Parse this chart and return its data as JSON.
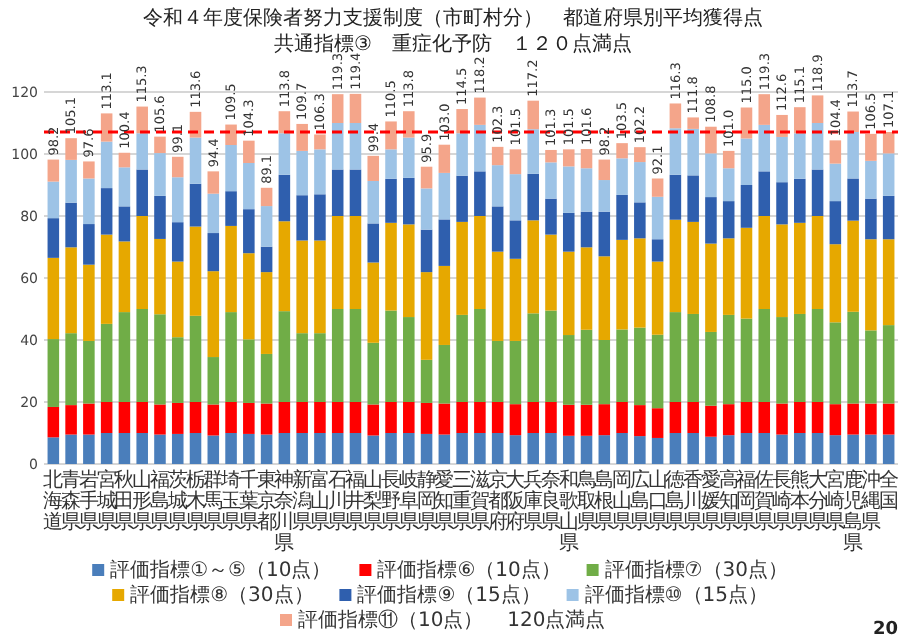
{
  "chart_data": {
    "type": "bar",
    "stacked": true,
    "title": "令和４年度保険者努力支援制度（市町村分）　都道府県別平均獲得点",
    "subtitle": "共通指標③　重症化予防　１２０点満点",
    "categories": [
      "北海道",
      "青森県",
      "岩手県",
      "宮城県",
      "秋田県",
      "山形県",
      "福島県",
      "茨城県",
      "栃木県",
      "群馬県",
      "埼玉県",
      "千葉県",
      "東京都",
      "神奈川県",
      "新潟県",
      "富山県",
      "石川県",
      "福井県",
      "山梨県",
      "長野県",
      "岐阜県",
      "静岡県",
      "愛知県",
      "三重県",
      "滋賀県",
      "京都府",
      "大阪府",
      "兵庫県",
      "奈良県",
      "和歌山県",
      "鳥取県",
      "島根県",
      "岡山県",
      "広島県",
      "山口県",
      "徳島県",
      "香川県",
      "愛媛県",
      "高知県",
      "福岡県",
      "佐賀県",
      "長崎県",
      "熊本県",
      "大分県",
      "宮崎県",
      "鹿児島県",
      "沖縄県",
      "全国"
    ],
    "series": [
      {
        "name": "評価指標①～⑤（10点）",
        "color": "#4a7ebb",
        "values": [
          8.6,
          9.5,
          9.5,
          10,
          10,
          10,
          9.5,
          9.7,
          10,
          9.2,
          10,
          9.7,
          9.5,
          10,
          10,
          10,
          10,
          10,
          9.2,
          10,
          10,
          9.7,
          9.5,
          10,
          10,
          10,
          9.3,
          10,
          10,
          9.1,
          9.1,
          9.3,
          10,
          9.0,
          8.4,
          10,
          10,
          8.8,
          9.3,
          10,
          10,
          9.5,
          10,
          10,
          9.3,
          9.5,
          9.5,
          9.5
        ]
      },
      {
        "name": "評価指標⑥（10点）",
        "color": "#ff0000",
        "values": [
          9.8,
          9.5,
          10,
          10,
          10,
          10,
          9.7,
          10,
          10,
          10,
          10,
          10,
          10,
          10,
          10,
          10,
          10,
          10,
          10,
          10,
          10,
          10,
          10,
          10,
          10,
          10,
          10,
          10,
          10,
          10,
          10,
          10,
          10,
          10,
          9.6,
          10,
          10,
          10,
          10,
          10,
          10,
          10,
          10,
          10,
          10,
          10,
          10,
          10
        ]
      },
      {
        "name": "評価指標⑦（30点）",
        "color": "#70ad47",
        "values": [
          21.9,
          23.2,
          20.2,
          25.2,
          29.0,
          30,
          29.1,
          21.2,
          27.8,
          15.3,
          29,
          20.5,
          16.0,
          29.3,
          22.2,
          22.2,
          30,
          30,
          19.9,
          29.5,
          27.4,
          13.9,
          18.9,
          28.1,
          30,
          19.7,
          20.4,
          28.6,
          29.5,
          22.5,
          24.2,
          20.7,
          23.4,
          25.0,
          23.7,
          29,
          28.4,
          23.8,
          28.8,
          26.9,
          30,
          27.9,
          28.4,
          30,
          26.4,
          29.6,
          23.6,
          25.3
        ]
      },
      {
        "name": "評価指標⑧（30点）",
        "color": "#e6a800",
        "values": [
          26.2,
          27.7,
          24.6,
          28.8,
          22.8,
          30,
          24.3,
          24.4,
          28.8,
          27.7,
          27.8,
          27.8,
          26.4,
          29.0,
          29.9,
          29.9,
          30,
          30,
          25.9,
          28.3,
          29.9,
          28.3,
          25.5,
          30.0,
          30,
          28.8,
          26.5,
          30.0,
          24.5,
          26.9,
          26.6,
          27.0,
          28.9,
          28.8,
          23.6,
          29.8,
          29.7,
          28.5,
          24.7,
          29.3,
          30,
          29.9,
          29.4,
          30,
          25.2,
          29.4,
          29.4,
          27.7
        ]
      },
      {
        "name": "評価指標⑨（15点）",
        "color": "#2f5fae",
        "values": [
          12.8,
          14.4,
          13.1,
          15.0,
          11.3,
          15,
          13.9,
          12.7,
          13.8,
          12.3,
          11.2,
          14.2,
          8.2,
          15.0,
          14.6,
          14.9,
          15,
          15,
          12.6,
          14.2,
          15.0,
          13.7,
          15.0,
          14.9,
          14.4,
          14.6,
          12.4,
          15.0,
          11.6,
          12.5,
          11.5,
          14.4,
          14.5,
          11.6,
          7.2,
          14.5,
          15.0,
          15.0,
          12.0,
          13.8,
          14.4,
          13.6,
          14.2,
          15,
          13.9,
          13.6,
          13.1,
          14.0
        ]
      },
      {
        "name": "評価指標⑩（15点）",
        "color": "#9dc3e6",
        "values": [
          11.8,
          13.8,
          14.7,
          15.0,
          12.6,
          11.7,
          13.8,
          14.5,
          14.9,
          12.7,
          14.9,
          14.9,
          13.1,
          13.4,
          14.3,
          14.5,
          15,
          15,
          13.7,
          9.5,
          13.0,
          13.3,
          15.0,
          13.7,
          15,
          13.3,
          14.9,
          14.4,
          11.7,
          15.0,
          14.0,
          10.2,
          11.8,
          13.0,
          13.7,
          15,
          15.0,
          14.1,
          10.6,
          15.0,
          15.0,
          14.6,
          14.7,
          15,
          12.1,
          15.0,
          12.2,
          13.7
        ]
      },
      {
        "name": "評価指標⑪（10点）",
        "color": "#f4a58a",
        "values": [
          7.1,
          7.0,
          5.5,
          9.1,
          4.7,
          8.6,
          5.3,
          6.6,
          8.3,
          7.2,
          6.6,
          7.2,
          5.9,
          7.1,
          8.7,
          4.8,
          9.3,
          9.4,
          8.1,
          9.0,
          8.5,
          7.0,
          9.1,
          7.8,
          8.8,
          5.9,
          8.0,
          9.2,
          4.0,
          5.5,
          6.2,
          6.6,
          4.9,
          4.8,
          5.9,
          8.0,
          3.7,
          8.6,
          5.6,
          10.0,
          9.9,
          7.1,
          8.4,
          8.9,
          7.5,
          6.6,
          8.7,
          6.9
        ]
      }
    ],
    "totals": [
      "98.2",
      "105.1",
      "97.6",
      "113.1",
      "100.4",
      "115.3",
      "105.6",
      "99.1",
      "113.6",
      "94.4",
      "109.5",
      "104.3",
      "89.1",
      "113.8",
      "109.7",
      "106.3",
      "119.3",
      "119.4",
      "99.4",
      "110.5",
      "113.8",
      "95.9",
      "103.0",
      "114.5",
      "118.2",
      "102.3",
      "101.5",
      "117.2",
      "101.3",
      "101.5",
      "101.6",
      "98.2",
      "103.5",
      "102.2",
      "92.1",
      "116.3",
      "111.8",
      "108.8",
      "101.0",
      "115.0",
      "119.3",
      "112.6",
      "115.1",
      "118.9",
      "104.4",
      "113.7",
      "106.5",
      "107.1"
    ],
    "ref_lines": [
      {
        "axis": "y",
        "value": 107.1,
        "color": "#ff0000",
        "line_style": "dashed"
      }
    ],
    "ylim": [
      0,
      120
    ],
    "yticks": [
      0,
      20,
      40,
      60,
      80,
      100,
      120
    ],
    "grid": "y",
    "legend": "bottom",
    "annotations": [
      "120点満点",
      "20"
    ]
  }
}
